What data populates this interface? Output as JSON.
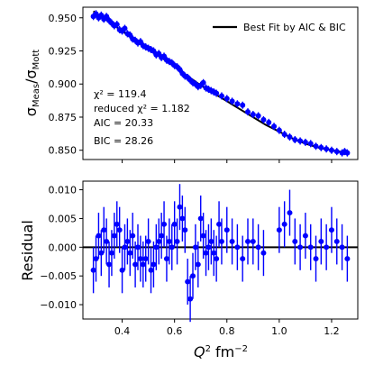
{
  "chart_data": [
    {
      "type": "scatter",
      "panel": "top",
      "ylabel_main": "σ",
      "ylabel_sub1": "Meas",
      "ylabel_mid": "/σ",
      "ylabel_sub2": "Mott",
      "xlim": [
        0.25,
        1.3
      ],
      "ylim": [
        0.843,
        0.958
      ],
      "yticks": [
        0.85,
        0.875,
        0.9,
        0.925,
        0.95
      ],
      "ytick_labels": [
        "0.850",
        "0.875",
        "0.900",
        "0.925",
        "0.950"
      ],
      "legend": {
        "label": "Best Fit by AIC & BIC",
        "placement": "top-right",
        "color": "#000000"
      },
      "annotations": {
        "chi2": "χ² = 119.4",
        "reduced": "reduced χ² = 1.182",
        "aic": "AIC = 20.33",
        "bic": "BIC = 28.26"
      },
      "fit_line": {
        "x": [
          0.29,
          0.35,
          0.4,
          0.45,
          0.5,
          0.55,
          0.6,
          0.65,
          0.7,
          0.75,
          0.8,
          0.85,
          0.9,
          0.95,
          1.0,
          1.05,
          1.1,
          1.15,
          1.2,
          1.26
        ],
        "y": [
          0.955,
          0.947,
          0.94,
          0.933,
          0.926,
          0.92,
          0.913,
          0.906,
          0.899,
          0.893,
          0.887,
          0.881,
          0.875,
          0.869,
          0.864,
          0.859,
          0.855,
          0.852,
          0.85,
          0.848
        ]
      },
      "series": [
        {
          "color": "#0000ff",
          "points": [
            [
              0.29,
              0.951
            ],
            [
              0.3,
              0.953
            ],
            [
              0.31,
              0.95
            ],
            [
              0.32,
              0.952
            ],
            [
              0.33,
              0.949
            ],
            [
              0.34,
              0.951
            ],
            [
              0.35,
              0.948
            ],
            [
              0.36,
              0.946
            ],
            [
              0.37,
              0.944
            ],
            [
              0.38,
              0.945
            ],
            [
              0.39,
              0.941
            ],
            [
              0.4,
              0.94
            ],
            [
              0.41,
              0.942
            ],
            [
              0.42,
              0.938
            ],
            [
              0.43,
              0.937
            ],
            [
              0.44,
              0.934
            ],
            [
              0.45,
              0.933
            ],
            [
              0.46,
              0.931
            ],
            [
              0.47,
              0.932
            ],
            [
              0.48,
              0.929
            ],
            [
              0.49,
              0.928
            ],
            [
              0.5,
              0.927
            ],
            [
              0.51,
              0.926
            ],
            [
              0.52,
              0.925
            ],
            [
              0.53,
              0.922
            ],
            [
              0.54,
              0.923
            ],
            [
              0.55,
              0.92
            ],
            [
              0.56,
              0.921
            ],
            [
              0.57,
              0.918
            ],
            [
              0.58,
              0.917
            ],
            [
              0.59,
              0.916
            ],
            [
              0.6,
              0.914
            ],
            [
              0.61,
              0.913
            ],
            [
              0.62,
              0.911
            ],
            [
              0.63,
              0.908
            ],
            [
              0.64,
              0.906
            ],
            [
              0.65,
              0.905
            ],
            [
              0.66,
              0.903
            ],
            [
              0.67,
              0.901
            ],
            [
              0.68,
              0.9
            ],
            [
              0.69,
              0.898
            ],
            [
              0.7,
              0.899
            ],
            [
              0.71,
              0.901
            ],
            [
              0.72,
              0.897
            ],
            [
              0.73,
              0.896
            ],
            [
              0.74,
              0.895
            ],
            [
              0.75,
              0.894
            ],
            [
              0.76,
              0.893
            ],
            [
              0.78,
              0.891
            ],
            [
              0.8,
              0.889
            ],
            [
              0.82,
              0.887
            ],
            [
              0.84,
              0.885
            ],
            [
              0.86,
              0.884
            ],
            [
              0.88,
              0.879
            ],
            [
              0.9,
              0.877
            ],
            [
              0.92,
              0.876
            ],
            [
              0.94,
              0.873
            ],
            [
              0.96,
              0.871
            ],
            [
              0.98,
              0.868
            ],
            [
              1.0,
              0.865
            ],
            [
              1.02,
              0.862
            ],
            [
              1.04,
              0.86
            ],
            [
              1.06,
              0.858
            ],
            [
              1.08,
              0.857
            ],
            [
              1.1,
              0.856
            ],
            [
              1.12,
              0.855
            ],
            [
              1.14,
              0.853
            ],
            [
              1.16,
              0.852
            ],
            [
              1.18,
              0.851
            ],
            [
              1.2,
              0.85
            ],
            [
              1.22,
              0.849
            ],
            [
              1.24,
              0.848
            ],
            [
              1.25,
              0.849
            ],
            [
              1.26,
              0.848
            ]
          ]
        }
      ]
    },
    {
      "type": "scatter",
      "panel": "bottom",
      "ylabel": "Residual",
      "xlabel_main": "Q",
      "xlabel_sup": "2",
      "xlabel_unit": " fm",
      "xlabel_unit_sup": "−2",
      "xlim": [
        0.25,
        1.3
      ],
      "ylim": [
        -0.0125,
        0.0115
      ],
      "xticks": [
        0.4,
        0.6,
        0.8,
        1.0,
        1.2
      ],
      "xtick_labels": [
        "0.4",
        "0.6",
        "0.8",
        "1.0",
        "1.2"
      ],
      "yticks": [
        -0.01,
        -0.005,
        0.0,
        0.005,
        0.01
      ],
      "ytick_labels": [
        "−0.010",
        "−0.005",
        "0.000",
        "0.005",
        "0.010"
      ],
      "zero_line_color": "#000000",
      "series": [
        {
          "color": "#0000ff",
          "err": 0.004,
          "points": [
            [
              0.29,
              -0.004
            ],
            [
              0.3,
              -0.002
            ],
            [
              0.31,
              0.002
            ],
            [
              0.32,
              -0.001
            ],
            [
              0.33,
              0.003
            ],
            [
              0.34,
              0.001
            ],
            [
              0.35,
              -0.003
            ],
            [
              0.36,
              -0.001
            ],
            [
              0.37,
              0.002
            ],
            [
              0.38,
              0.004
            ],
            [
              0.39,
              0.003
            ],
            [
              0.4,
              -0.004
            ],
            [
              0.41,
              0.0
            ],
            [
              0.42,
              0.001
            ],
            [
              0.43,
              -0.001
            ],
            [
              0.44,
              0.002
            ],
            [
              0.45,
              -0.003
            ],
            [
              0.46,
              0.0
            ],
            [
              0.47,
              -0.002
            ],
            [
              0.48,
              -0.003
            ],
            [
              0.49,
              -0.002
            ],
            [
              0.5,
              0.001
            ],
            [
              0.51,
              -0.004
            ],
            [
              0.52,
              -0.003
            ],
            [
              0.53,
              0.0
            ],
            [
              0.54,
              0.001
            ],
            [
              0.55,
              0.002
            ],
            [
              0.56,
              0.004
            ],
            [
              0.57,
              -0.002
            ],
            [
              0.58,
              0.001
            ],
            [
              0.59,
              0.0
            ],
            [
              0.6,
              0.004
            ],
            [
              0.61,
              0.001
            ],
            [
              0.62,
              0.007
            ],
            [
              0.63,
              0.005
            ],
            [
              0.64,
              0.003
            ],
            [
              0.65,
              -0.006
            ],
            [
              0.66,
              -0.009
            ],
            [
              0.67,
              -0.005
            ],
            [
              0.68,
              0.0
            ],
            [
              0.69,
              -0.003
            ],
            [
              0.7,
              0.005
            ],
            [
              0.71,
              0.002
            ],
            [
              0.72,
              -0.001
            ],
            [
              0.73,
              0.0
            ],
            [
              0.74,
              0.001
            ],
            [
              0.75,
              -0.001
            ],
            [
              0.76,
              -0.002
            ],
            [
              0.77,
              0.004
            ],
            [
              0.78,
              0.001
            ],
            [
              0.8,
              0.003
            ],
            [
              0.82,
              0.001
            ],
            [
              0.84,
              0.0
            ],
            [
              0.86,
              -0.002
            ],
            [
              0.88,
              0.001
            ],
            [
              0.9,
              0.001
            ],
            [
              0.92,
              0.0
            ],
            [
              0.94,
              -0.001
            ],
            [
              1.0,
              0.003
            ],
            [
              1.02,
              0.004
            ],
            [
              1.04,
              0.006
            ],
            [
              1.06,
              0.001
            ],
            [
              1.08,
              0.0
            ],
            [
              1.1,
              0.002
            ],
            [
              1.12,
              0.0
            ],
            [
              1.14,
              -0.002
            ],
            [
              1.16,
              0.001
            ],
            [
              1.18,
              0.0
            ],
            [
              1.2,
              0.003
            ],
            [
              1.22,
              0.001
            ],
            [
              1.24,
              0.0
            ],
            [
              1.26,
              -0.002
            ]
          ]
        }
      ]
    }
  ]
}
